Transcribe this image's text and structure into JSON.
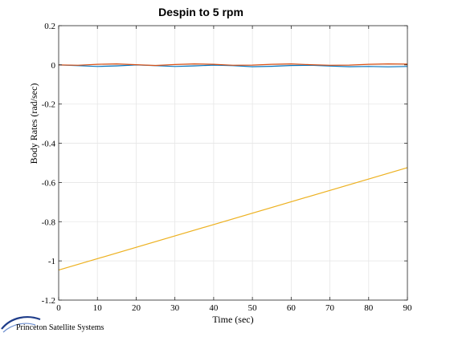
{
  "footer": {
    "organization": "Princeton Satellite Systems"
  },
  "chart_data": {
    "type": "line",
    "title": "Despin to 5 rpm",
    "xlabel": "Time (sec)",
    "ylabel": "Body Rates (rad/sec)",
    "xlim": [
      0,
      90
    ],
    "ylim": [
      -1.2,
      0.2
    ],
    "xticks": [
      0,
      10,
      20,
      30,
      40,
      50,
      60,
      70,
      80,
      90
    ],
    "yticks": [
      0.2,
      0,
      -0.2,
      -0.4,
      -0.6,
      -0.8,
      -1,
      -1.2
    ],
    "xtick_labels": [
      "0",
      "10",
      "20",
      "30",
      "40",
      "50",
      "60",
      "70",
      "80",
      "90"
    ],
    "ytick_labels": [
      "0.2",
      "0",
      "-0.2",
      "-0.4",
      "-0.6",
      "-0.8",
      "-1",
      "-1.2"
    ],
    "grid": true,
    "legend": "none",
    "series": [
      {
        "color": "#0072BD",
        "x": [
          0,
          5,
          10,
          15,
          20,
          25,
          30,
          35,
          40,
          45,
          50,
          55,
          60,
          65,
          70,
          75,
          80,
          85,
          90
        ],
        "y": [
          0,
          -0.004,
          -0.008,
          -0.005,
          0,
          -0.004,
          -0.008,
          -0.005,
          -0.001,
          -0.004,
          -0.009,
          -0.007,
          -0.003,
          -0.002,
          -0.006,
          -0.009,
          -0.008,
          -0.01,
          -0.008
        ]
      },
      {
        "color": "#D95319",
        "x": [
          0,
          5,
          10,
          15,
          20,
          25,
          30,
          35,
          40,
          45,
          50,
          55,
          60,
          65,
          70,
          75,
          80,
          85,
          90
        ],
        "y": [
          0,
          -0.002,
          0.003,
          0.005,
          0.001,
          -0.003,
          0.002,
          0.005,
          0.003,
          -0.002,
          -0.001,
          0.003,
          0.005,
          0.001,
          -0.002,
          -0.001,
          0.003,
          0.005,
          0.004
        ]
      },
      {
        "color": "#EDB120",
        "x": [
          0,
          90
        ],
        "y": [
          -1.047,
          -0.524
        ]
      }
    ]
  }
}
